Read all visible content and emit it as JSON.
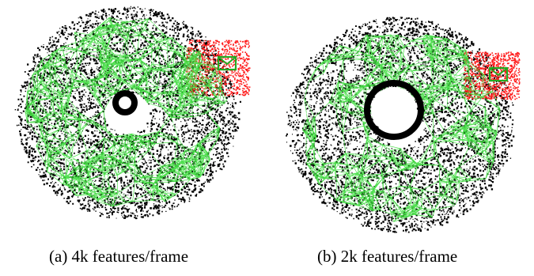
{
  "figure": {
    "subfigures": [
      {
        "caption": "(a) 4k features/frame",
        "colors": {
          "points": "#000000",
          "graph": "#3ddc3d",
          "highlight": "#ff1a1a",
          "box": "#22aa22"
        }
      },
      {
        "caption": "(b) 2k features/frame",
        "colors": {
          "points": "#000000",
          "graph": "#3ddc3d",
          "highlight": "#ff1a1a",
          "box": "#22aa22"
        }
      }
    ]
  }
}
